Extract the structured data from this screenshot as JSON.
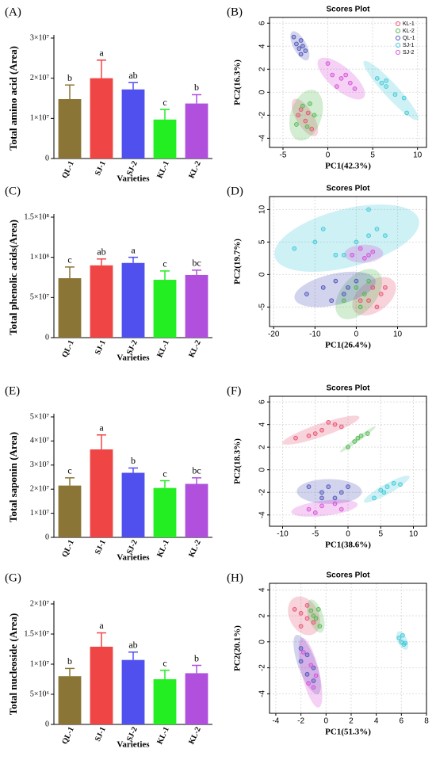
{
  "chart_data": [
    {
      "type": "bar",
      "panel_label": "(A)",
      "ylabel": "Total amino acid (Area)",
      "xlabel": "Varieties",
      "categories": [
        "QL-1",
        "SJ-1",
        "SJ-2",
        "KL-1",
        "KL-2"
      ],
      "colors": [
        "#8b7536",
        "#f04545",
        "#5050ee",
        "#22ee22",
        "#b050dd"
      ],
      "values": [
        14800000,
        20000000,
        17200000,
        9700000,
        13700000
      ],
      "errors": [
        3500000,
        4500000,
        1700000,
        2500000,
        2200000
      ],
      "annotations": [
        "b",
        "a",
        "ab",
        "c",
        "b"
      ],
      "ylim": [
        0,
        30000000
      ],
      "yticks": [
        0,
        {
          "value": 10000000,
          "label": "1×10⁷"
        },
        {
          "value": 20000000,
          "label": "2×10⁷"
        },
        {
          "value": 30000000,
          "label": "3×10⁷"
        }
      ]
    },
    {
      "type": "scatter",
      "panel_label": "(B)",
      "title": "Scores Plot",
      "xlabel": "PC1(42.3%)",
      "ylabel": "PC2(16.3%)",
      "xlim": [
        -6.5,
        11
      ],
      "ylim": [
        -4.8,
        6.5
      ],
      "xticks": [
        -5,
        0,
        5,
        10
      ],
      "yticks": [
        -4,
        -2,
        0,
        2,
        4,
        6
      ],
      "grid": true,
      "legend": "upper right",
      "series": [
        {
          "name": "KL-1",
          "color": "#e8506e",
          "x": [
            -3,
            -2.5,
            -1.8,
            -3.3,
            -2.2
          ],
          "y": [
            -1.5,
            -2.5,
            -3.2,
            -2.0,
            -1.8
          ]
        },
        {
          "name": "KL-2",
          "color": "#4cb84c",
          "x": [
            -2.8,
            -2.0,
            -3.5,
            -2.3,
            -1.5
          ],
          "y": [
            -1.2,
            -1.0,
            -2.8,
            -3.0,
            -2.0
          ]
        },
        {
          "name": "QL-1",
          "color": "#4a50b8",
          "x": [
            -3.8,
            -3.5,
            -3.0,
            -3.2,
            -2.5,
            -3.0,
            -2.8
          ],
          "y": [
            4.8,
            4.2,
            4.5,
            3.8,
            3.6,
            3.3,
            4.0
          ]
        },
        {
          "name": "SJ-1",
          "color": "#3cc8d8",
          "x": [
            5.5,
            6.0,
            6.5,
            7.5,
            8.5,
            8.8,
            6.5
          ],
          "y": [
            1.2,
            0.8,
            1.0,
            -0.2,
            -0.5,
            -1.8,
            0.5
          ]
        },
        {
          "name": "SJ-2",
          "color": "#d84cd8",
          "x": [
            0.0,
            0.5,
            1.5,
            2.5,
            3.0,
            1.0,
            2.0
          ],
          "y": [
            2.5,
            1.5,
            1.2,
            0.8,
            0.3,
            0.5,
            1.5
          ]
        }
      ]
    },
    {
      "type": "bar",
      "panel_label": "(C)",
      "ylabel": "Total phenolic acids(Area)",
      "xlabel": "Varieties",
      "categories": [
        "QL-1",
        "SJ-1",
        "SJ-2",
        "KL-1",
        "KL-2"
      ],
      "colors": [
        "#8b7536",
        "#f04545",
        "#5050ee",
        "#22ee22",
        "#b050dd"
      ],
      "values": [
        74000000,
        90000000,
        93000000,
        72000000,
        78000000
      ],
      "errors": [
        14000000,
        8000000,
        7000000,
        11000000,
        6000000
      ],
      "annotations": [
        "c",
        "ab",
        "a",
        "c",
        "bc"
      ],
      "ylim": [
        0,
        150000000
      ],
      "yticks": [
        0,
        {
          "value": 50000000,
          "label": "5×10⁷"
        },
        {
          "value": 100000000,
          "label": "1×10⁸"
        },
        {
          "value": 150000000,
          "label": "1.5×10⁸"
        }
      ]
    },
    {
      "type": "scatter",
      "panel_label": "(D)",
      "title": "Scores Plot",
      "xlabel": "PC1(26.4%)",
      "ylabel": "PC2(19.7%)",
      "xlim": [
        -21,
        17
      ],
      "ylim": [
        -8,
        12
      ],
      "xticks": [
        -20,
        -10,
        0,
        10
      ],
      "yticks": [
        -5,
        0,
        5,
        10
      ],
      "grid": true,
      "series": [
        {
          "name": "KL-1",
          "color": "#e8506e",
          "x": [
            1,
            4,
            6,
            5,
            3,
            7
          ],
          "y": [
            -4,
            -2,
            -3,
            -5,
            -4,
            -2
          ]
        },
        {
          "name": "KL-2",
          "color": "#4cb84c",
          "x": [
            -3,
            0,
            2,
            1,
            3
          ],
          "y": [
            -4,
            -2,
            -3,
            -5,
            -1
          ]
        },
        {
          "name": "QL-1",
          "color": "#4a50b8",
          "x": [
            -12,
            -8,
            -5,
            -3,
            0,
            -6,
            -2
          ],
          "y": [
            -3,
            -2,
            -1,
            -3,
            -1,
            -4,
            -2
          ]
        },
        {
          "name": "SJ-1",
          "color": "#3cc8d8",
          "x": [
            -15,
            -10,
            -8,
            -5,
            0,
            3,
            5,
            -3,
            3,
            7
          ],
          "y": [
            4,
            5,
            7,
            3,
            5,
            10,
            7,
            3,
            6,
            6
          ]
        },
        {
          "name": "SJ-2",
          "color": "#d84cd8",
          "x": [
            -1,
            1,
            3,
            2,
            4
          ],
          "y": [
            3,
            4,
            3,
            2.5,
            3.5
          ]
        }
      ]
    },
    {
      "type": "bar",
      "panel_label": "(E)",
      "ylabel": "Total saponin (Area)",
      "xlabel": "Varieties",
      "categories": [
        "QL-1",
        "SJ-1",
        "SJ-2",
        "KL-1",
        "KL-2"
      ],
      "colors": [
        "#8b7536",
        "#f04545",
        "#5050ee",
        "#22ee22",
        "#b050dd"
      ],
      "values": [
        21500000,
        36500000,
        26800000,
        20500000,
        22200000
      ],
      "errors": [
        3200000,
        6000000,
        2000000,
        3000000,
        2500000
      ],
      "annotations": [
        "c",
        "a",
        "b",
        "c",
        "bc"
      ],
      "ylim": [
        0,
        50000000
      ],
      "yticks": [
        0,
        {
          "value": 10000000,
          "label": "1×10⁷"
        },
        {
          "value": 20000000,
          "label": "2×10⁷"
        },
        {
          "value": 30000000,
          "label": "3×10⁷"
        },
        {
          "value": 40000000,
          "label": "4×10⁷"
        },
        {
          "value": 50000000,
          "label": "5×10⁷"
        }
      ]
    },
    {
      "type": "scatter",
      "panel_label": "(F)",
      "title": "Scores Plot",
      "xlabel": "PC1(38.6%)",
      "ylabel": "PC2(18.3%)",
      "xlim": [
        -12,
        12
      ],
      "ylim": [
        -5,
        6.5
      ],
      "xticks": [
        -10,
        -5,
        0,
        5,
        10
      ],
      "yticks": [
        -4,
        -2,
        0,
        2,
        4,
        6
      ],
      "grid": true,
      "series": [
        {
          "name": "KL-1",
          "color": "#e8506e",
          "x": [
            -8,
            -6,
            -4,
            -3,
            -2,
            -1,
            -5
          ],
          "y": [
            2.8,
            3,
            3.5,
            4.2,
            4,
            3.8,
            3.2
          ]
        },
        {
          "name": "KL-2",
          "color": "#4cb84c",
          "x": [
            0,
            1,
            2,
            3,
            1.5
          ],
          "y": [
            2,
            2.5,
            3,
            3.2,
            2.8
          ]
        },
        {
          "name": "QL-1",
          "color": "#4a50b8",
          "x": [
            -6,
            -4,
            -3,
            -2,
            -1,
            0,
            -4
          ],
          "y": [
            -1.5,
            -2,
            -1.5,
            -2.5,
            -2,
            -1.5,
            -2.5
          ]
        },
        {
          "name": "SJ-1",
          "color": "#3cc8d8",
          "x": [
            4,
            5,
            6,
            7,
            8,
            5.5
          ],
          "y": [
            -2.5,
            -1.8,
            -1.5,
            -1.2,
            -1.3,
            -2
          ]
        },
        {
          "name": "SJ-2",
          "color": "#d84cd8",
          "x": [
            -6,
            -4,
            -2,
            -1,
            -5
          ],
          "y": [
            -3.5,
            -3.2,
            -3,
            -3.5,
            -3.8
          ]
        }
      ]
    },
    {
      "type": "bar",
      "panel_label": "(G)",
      "ylabel": "Total nucleoside (Area)",
      "xlabel": "Varieties",
      "categories": [
        "QL-1",
        "SJ-1",
        "SJ-2",
        "KL-1",
        "KL-2"
      ],
      "colors": [
        "#8b7536",
        "#f04545",
        "#5050ee",
        "#22ee22",
        "#b050dd"
      ],
      "values": [
        8000000,
        12900000,
        10700000,
        7500000,
        8500000
      ],
      "errors": [
        1300000,
        2300000,
        1300000,
        1500000,
        1300000
      ],
      "annotations": [
        "b",
        "a",
        "ab",
        "c",
        "b"
      ],
      "ylim": [
        0,
        20000000
      ],
      "yticks": [
        0,
        {
          "value": 5000000,
          "label": "5×10⁶"
        },
        {
          "value": 10000000,
          "label": "1×10⁷"
        },
        {
          "value": 15000000,
          "label": "1.5×10⁷"
        },
        {
          "value": 20000000,
          "label": "2×10⁷"
        }
      ]
    },
    {
      "type": "scatter",
      "panel_label": "(H)",
      "title": "Scores Plot",
      "xlabel": "PC1(51.3%)",
      "ylabel": "PC2(20.1%)",
      "xlim": [
        -4.5,
        8
      ],
      "ylim": [
        -5.5,
        4.5
      ],
      "xticks": [
        -4,
        -2,
        0,
        2,
        4,
        6,
        8
      ],
      "yticks": [
        -4,
        -2,
        0,
        2,
        4
      ],
      "grid": true,
      "series": [
        {
          "name": "KL-1",
          "color": "#e8506e",
          "x": [
            -2.5,
            -2,
            -1.5,
            -1,
            -2,
            -1.5
          ],
          "y": [
            2.5,
            2.2,
            1.8,
            1.5,
            1.2,
            2.8
          ]
        },
        {
          "name": "KL-2",
          "color": "#4cb84c",
          "x": [
            -1.2,
            -0.8,
            -0.5,
            -1,
            -0.6
          ],
          "y": [
            2.4,
            1.8,
            1.2,
            2,
            2.5
          ]
        },
        {
          "name": "QL-1",
          "color": "#4a50b8",
          "x": [
            -2,
            -1.5,
            -1,
            -1.5,
            -1,
            -2
          ],
          "y": [
            -0.5,
            -1,
            -2,
            -2.5,
            -3,
            -1.5
          ]
        },
        {
          "name": "SJ-1",
          "color": "#3cc8d8",
          "x": [
            5.8,
            6,
            6.2,
            6.1,
            6.3
          ],
          "y": [
            0.3,
            0,
            -0.2,
            0.5,
            -0.1
          ]
        },
        {
          "name": "SJ-2",
          "color": "#d84cd8",
          "x": [
            -1.8,
            -1.2,
            -0.8,
            -1.4,
            -1
          ],
          "y": [
            -0.8,
            -1.8,
            -2.6,
            -3.2,
            -3.5
          ]
        }
      ]
    }
  ]
}
